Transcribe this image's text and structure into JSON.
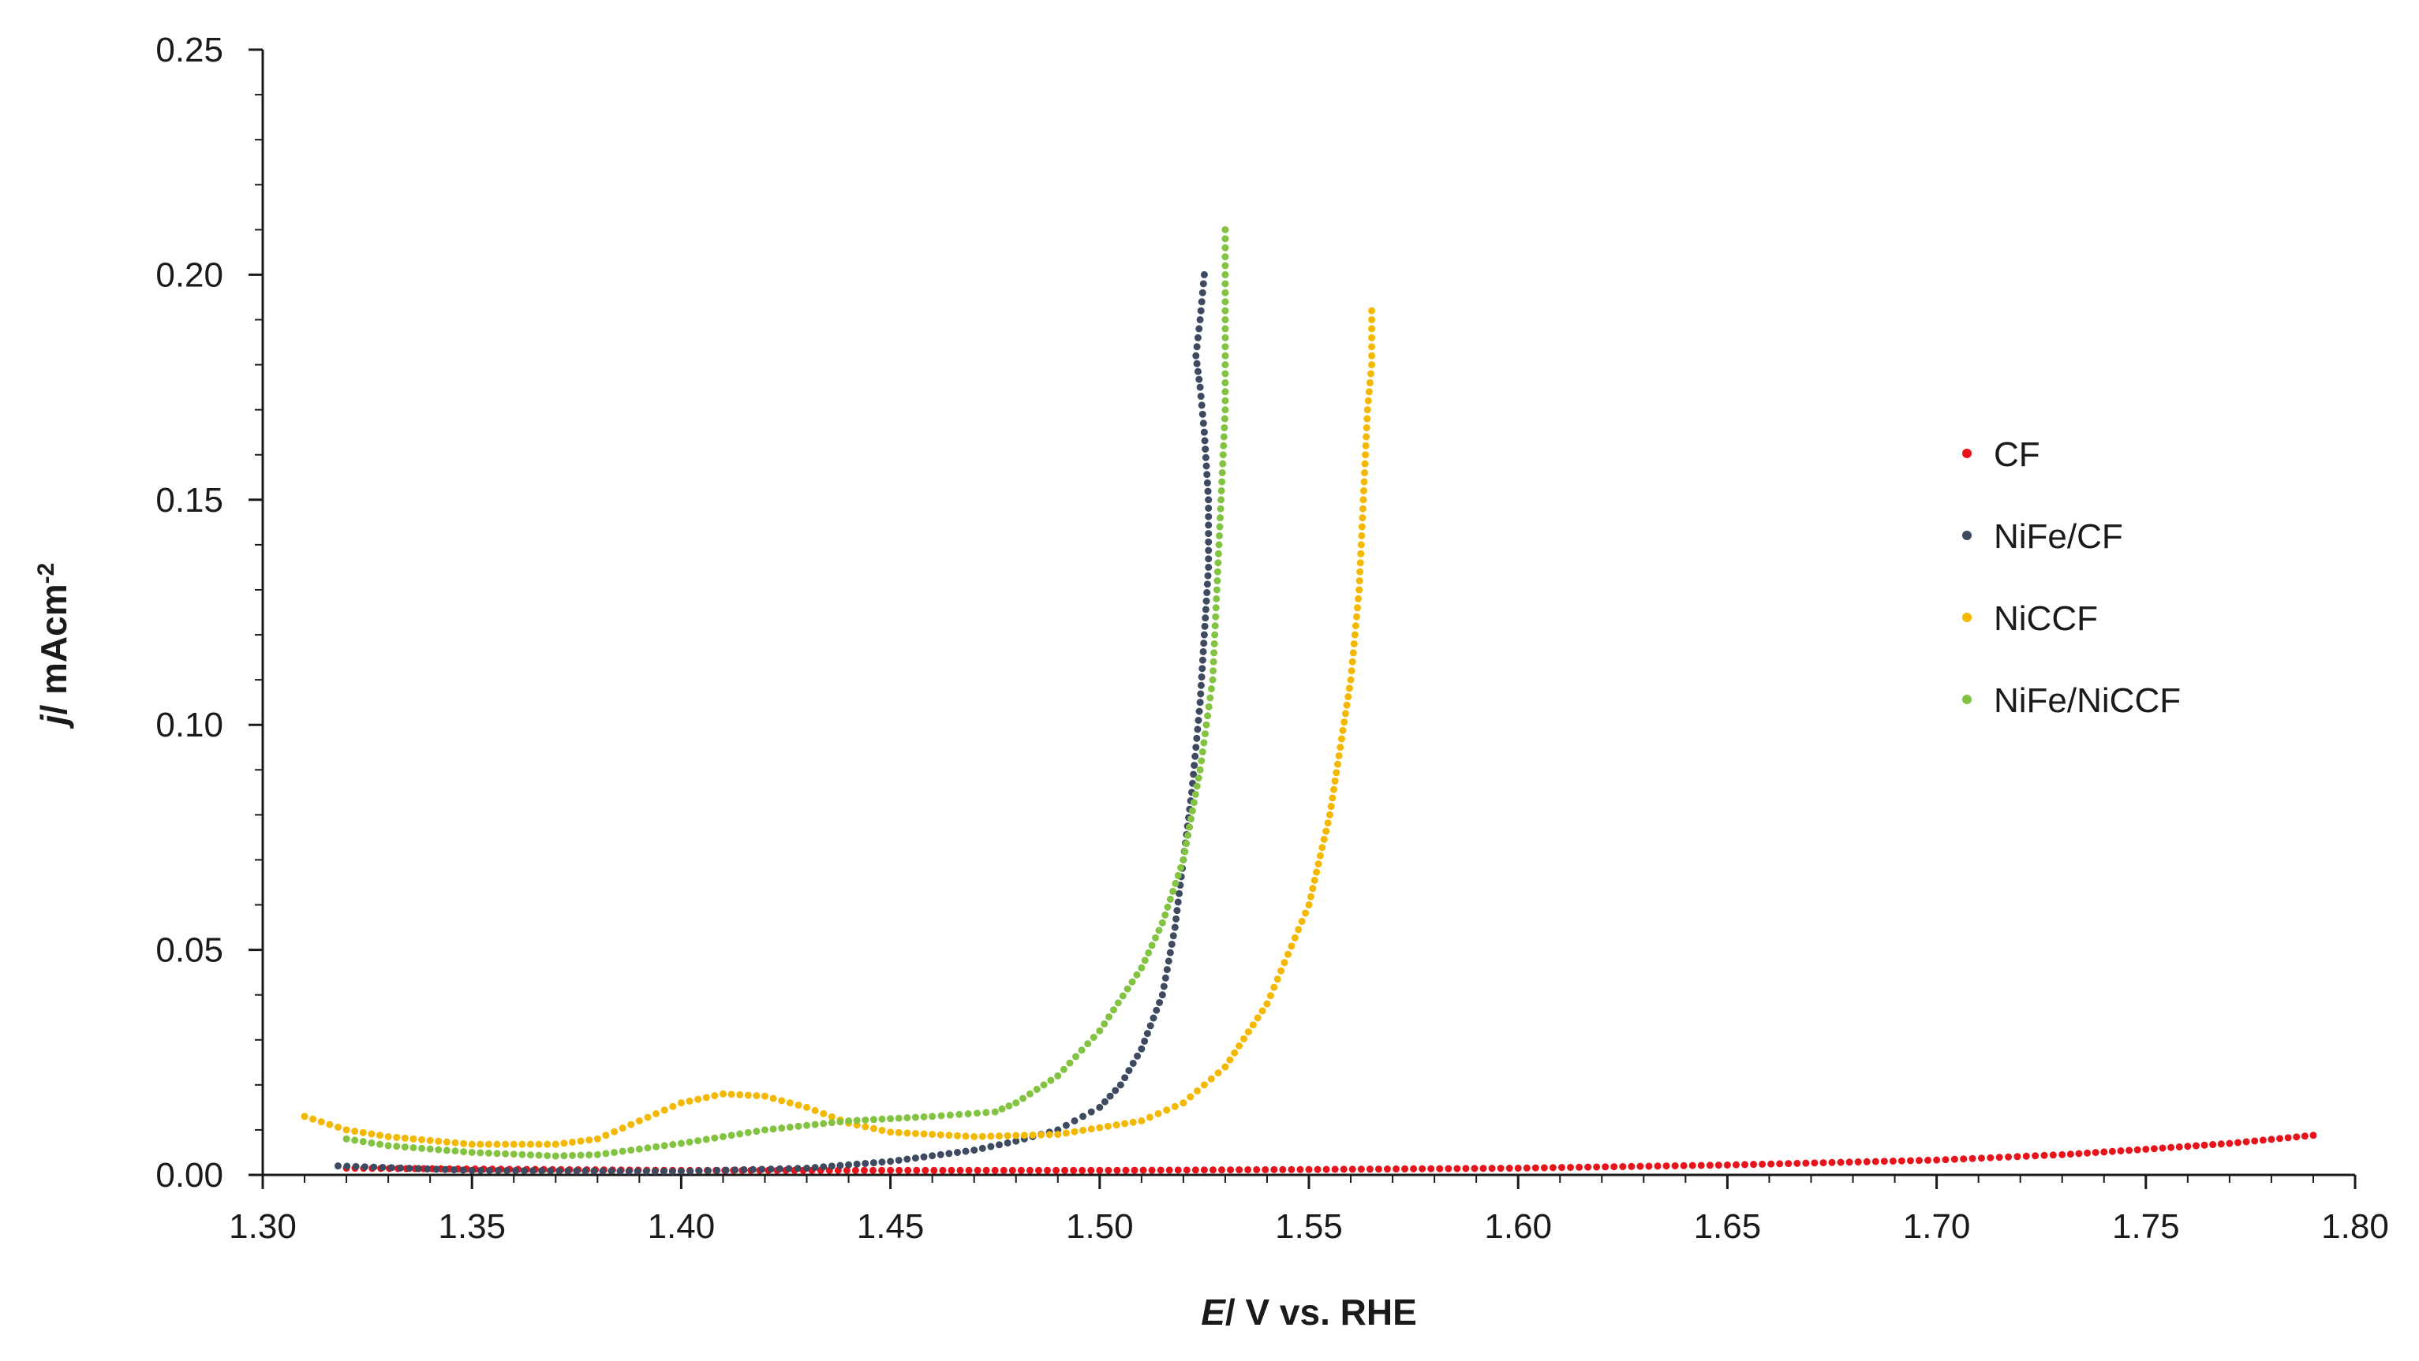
{
  "chart_data": {
    "type": "scatter",
    "title": "",
    "xlabel_italic": "E",
    "xlabel_rest": "/ V vs. RHE",
    "ylabel_italic": "j",
    "ylabel_rest": "/ mAcm",
    "ylabel_sup": "-2",
    "xlim": [
      1.3,
      1.8
    ],
    "ylim": [
      0.0,
      0.25
    ],
    "xticks": [
      1.3,
      1.35,
      1.4,
      1.45,
      1.5,
      1.55,
      1.6,
      1.65,
      1.7,
      1.75,
      1.8
    ],
    "xtick_labels": [
      "1.30",
      "1.35",
      "1.40",
      "1.45",
      "1.50",
      "1.55",
      "1.60",
      "1.65",
      "1.70",
      "1.75",
      "1.80"
    ],
    "yticks": [
      0.0,
      0.05,
      0.1,
      0.15,
      0.2,
      0.25
    ],
    "ytick_labels": [
      "0.00",
      "0.05",
      "0.10",
      "0.15",
      "0.20",
      "0.25"
    ],
    "legend_position": "right",
    "series": [
      {
        "name": "CF",
        "color": "#e8141b",
        "points": [
          [
            1.32,
            0.0015
          ],
          [
            1.4,
            0.001
          ],
          [
            1.45,
            0.001
          ],
          [
            1.5,
            0.001
          ],
          [
            1.55,
            0.0012
          ],
          [
            1.6,
            0.0015
          ],
          [
            1.65,
            0.0022
          ],
          [
            1.7,
            0.0033
          ],
          [
            1.73,
            0.0045
          ],
          [
            1.75,
            0.0057
          ],
          [
            1.77,
            0.007
          ],
          [
            1.79,
            0.0088
          ]
        ]
      },
      {
        "name": "NiFe/CF",
        "color": "#3d4a60",
        "points": [
          [
            1.318,
            0.002
          ],
          [
            1.35,
            0.001
          ],
          [
            1.4,
            0.0008
          ],
          [
            1.43,
            0.0015
          ],
          [
            1.45,
            0.003
          ],
          [
            1.47,
            0.0055
          ],
          [
            1.48,
            0.0075
          ],
          [
            1.49,
            0.01
          ],
          [
            1.5,
            0.015
          ],
          [
            1.505,
            0.02
          ],
          [
            1.51,
            0.028
          ],
          [
            1.515,
            0.04
          ],
          [
            1.518,
            0.055
          ],
          [
            1.52,
            0.07
          ],
          [
            1.522,
            0.085
          ],
          [
            1.524,
            0.105
          ],
          [
            1.525,
            0.12
          ],
          [
            1.526,
            0.135
          ],
          [
            1.526,
            0.15
          ],
          [
            1.525,
            0.165
          ],
          [
            1.524,
            0.175
          ],
          [
            1.523,
            0.182
          ],
          [
            1.524,
            0.19
          ],
          [
            1.525,
            0.2
          ]
        ]
      },
      {
        "name": "NiCCF",
        "color": "#f5b800",
        "points": [
          [
            1.31,
            0.013
          ],
          [
            1.32,
            0.01
          ],
          [
            1.33,
            0.0085
          ],
          [
            1.35,
            0.0068
          ],
          [
            1.37,
            0.0068
          ],
          [
            1.38,
            0.008
          ],
          [
            1.39,
            0.012
          ],
          [
            1.4,
            0.016
          ],
          [
            1.41,
            0.018
          ],
          [
            1.42,
            0.0175
          ],
          [
            1.43,
            0.015
          ],
          [
            1.44,
            0.0115
          ],
          [
            1.45,
            0.0095
          ],
          [
            1.47,
            0.0085
          ],
          [
            1.49,
            0.009
          ],
          [
            1.51,
            0.012
          ],
          [
            1.52,
            0.016
          ],
          [
            1.53,
            0.024
          ],
          [
            1.54,
            0.038
          ],
          [
            1.55,
            0.06
          ],
          [
            1.555,
            0.08
          ],
          [
            1.56,
            0.11
          ],
          [
            1.562,
            0.13
          ],
          [
            1.563,
            0.15
          ],
          [
            1.564,
            0.17
          ],
          [
            1.565,
            0.18
          ],
          [
            1.565,
            0.192
          ]
        ]
      },
      {
        "name": "NiFe/NiCCF",
        "color": "#82c341",
        "points": [
          [
            1.32,
            0.008
          ],
          [
            1.33,
            0.0065
          ],
          [
            1.35,
            0.005
          ],
          [
            1.37,
            0.0042
          ],
          [
            1.38,
            0.0045
          ],
          [
            1.4,
            0.007
          ],
          [
            1.42,
            0.01
          ],
          [
            1.44,
            0.012
          ],
          [
            1.46,
            0.013
          ],
          [
            1.475,
            0.014
          ],
          [
            1.48,
            0.016
          ],
          [
            1.49,
            0.022
          ],
          [
            1.5,
            0.032
          ],
          [
            1.51,
            0.046
          ],
          [
            1.515,
            0.056
          ],
          [
            1.52,
            0.07
          ],
          [
            1.524,
            0.09
          ],
          [
            1.527,
            0.11
          ],
          [
            1.528,
            0.13
          ],
          [
            1.529,
            0.15
          ],
          [
            1.53,
            0.17
          ],
          [
            1.53,
            0.19
          ],
          [
            1.53,
            0.21
          ]
        ]
      }
    ]
  }
}
